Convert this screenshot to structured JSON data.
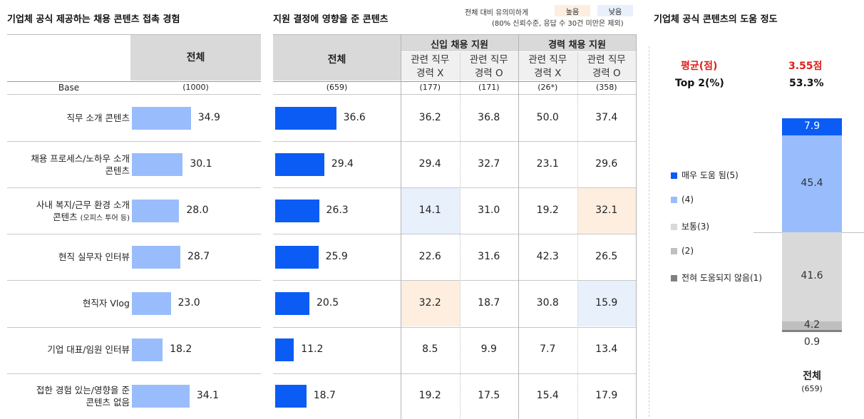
{
  "left": {
    "title": "기업체 공식 제공하는 채용 콘텐츠 접촉 경험",
    "header": "전체",
    "base_label": "Base",
    "base_value": "(1000)"
  },
  "rows": [
    {
      "label": "직무 소개 콘텐츠",
      "label_sub": ""
    },
    {
      "label": "채용 프로세스/노하우 소개",
      "label2": "콘텐츠",
      "label_sub": ""
    },
    {
      "label": "사내 복지/근무 환경 소개",
      "label2": "콘텐츠",
      "label_sub": "(오피스 투어 등)"
    },
    {
      "label": "현직 실무자 인터뷰",
      "label_sub": ""
    },
    {
      "label": "현직자 Vlog",
      "label_sub": ""
    },
    {
      "label": "기업 대표/임원 인터뷰",
      "label_sub": ""
    },
    {
      "label": "접한 경험 있는/영향을 준",
      "label2": "콘텐츠 없음",
      "label_sub": ""
    }
  ],
  "middle": {
    "title": "지원 결정에 영향을 준 콘텐츠",
    "note_line1": "전체 대비 유의미하게",
    "note_line2": "(80% 신뢰수준, 응답 수 30건 미만은 제외)",
    "legend_high": "높음",
    "legend_low": "낮음",
    "header_total": "전체",
    "group_new": "신입 채용 지원",
    "group_career": "경력 채용 지원",
    "sub_headers": [
      {
        "line1": "관련 직무",
        "line2": "경력 X"
      },
      {
        "line1": "관련 직무",
        "line2": "경력 O"
      },
      {
        "line1": "관련 직무",
        "line2": "경력 X"
      },
      {
        "line1": "관련 직무",
        "line2": "경력 O"
      }
    ],
    "bases": [
      "(659)",
      "(177)",
      "(171)",
      "(26*)",
      "(358)"
    ],
    "table": [
      [
        "36.2",
        "36.8",
        "50.0",
        "37.4"
      ],
      [
        "29.4",
        "32.7",
        "23.1",
        "29.6"
      ],
      [
        "14.1",
        "31.0",
        "19.2",
        "32.1"
      ],
      [
        "22.6",
        "31.6",
        "42.3",
        "26.5"
      ],
      [
        "32.2",
        "18.7",
        "30.8",
        "15.9"
      ],
      [
        "8.5",
        "9.9",
        "7.7",
        "13.4"
      ],
      [
        "19.2",
        "17.5",
        "15.4",
        "17.9"
      ]
    ],
    "highlights": [
      {
        "row": 2,
        "col": 0,
        "type": "low"
      },
      {
        "row": 2,
        "col": 3,
        "type": "high"
      },
      {
        "row": 4,
        "col": 0,
        "type": "high"
      },
      {
        "row": 4,
        "col": 3,
        "type": "low"
      }
    ]
  },
  "right": {
    "title": "기업체 공식 콘텐츠의 도움 정도",
    "avg_label": "평균(점)",
    "avg_value": "3.55점",
    "top2_label": "Top 2(%)",
    "top2_value": "53.3%",
    "x_label": "전체",
    "x_base": "(659)",
    "legend": [
      "매우 도움 됨(5)",
      "(4)",
      "보통(3)",
      "(2)",
      "전혀 도움되지 않음(1)"
    ]
  },
  "colors": {
    "bar_light": "#99bdfc",
    "bar_dark": "#0a5cf5",
    "highlight_high": "#fdeee0",
    "highlight_low": "#e8f0fc",
    "red_text": "#e0201a",
    "stack": [
      "#0a5cf5",
      "#99bdfc",
      "#d9d9d9",
      "#bfbfbf",
      "#808080"
    ]
  },
  "chart_data": [
    {
      "type": "bar",
      "title": "기업체 공식 제공하는 채용 콘텐츠 접촉 경험",
      "categories": [
        "직무 소개 콘텐츠",
        "채용 프로세스/노하우 소개 콘텐츠",
        "사내 복지/근무 환경 소개 콘텐츠 (오피스 투어 등)",
        "현직 실무자 인터뷰",
        "현직자 Vlog",
        "기업 대표/임원 인터뷰",
        "접한 경험 있는/영향을 준 콘텐츠 없음"
      ],
      "values": [
        34.9,
        30.1,
        28.0,
        28.7,
        23.0,
        18.2,
        34.1
      ],
      "value_labels": [
        "34.9",
        "30.1",
        "28.0",
        "28.7",
        "23.0",
        "18.2",
        "34.1"
      ],
      "orientation": "horizontal"
    },
    {
      "type": "bar",
      "title": "지원 결정에 영향을 준 콘텐츠",
      "categories": [
        "직무 소개 콘텐츠",
        "채용 프로세스/노하우 소개 콘텐츠",
        "사내 복지/근무 환경 소개 콘텐츠 (오피스 투어 등)",
        "현직 실무자 인터뷰",
        "현직자 Vlog",
        "기업 대표/임원 인터뷰",
        "접한 경험 있는/영향을 준 콘텐츠 없음"
      ],
      "values": [
        36.6,
        29.4,
        26.3,
        25.9,
        20.5,
        11.2,
        18.7
      ],
      "value_labels": [
        "36.6",
        "29.4",
        "26.3",
        "25.9",
        "20.5",
        "11.2",
        "18.7"
      ],
      "orientation": "horizontal"
    },
    {
      "type": "bar",
      "stacked": true,
      "title": "기업체 공식 콘텐츠의 도움 정도",
      "categories": [
        "전체"
      ],
      "series": [
        {
          "name": "매우 도움 됨(5)",
          "values": [
            7.9
          ],
          "label": "7.9"
        },
        {
          "name": "(4)",
          "values": [
            45.4
          ],
          "label": "45.4"
        },
        {
          "name": "보통(3)",
          "values": [
            41.6
          ],
          "label": "41.6"
        },
        {
          "name": "(2)",
          "values": [
            4.2
          ],
          "label": "4.2"
        },
        {
          "name": "전혀 도움되지 않음(1)",
          "values": [
            0.9
          ],
          "label": "0.9"
        }
      ]
    }
  ]
}
